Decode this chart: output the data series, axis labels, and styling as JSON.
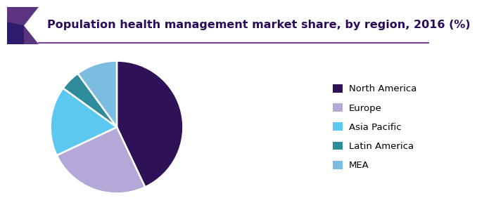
{
  "title": "Population health management market share, by region, 2016 (%)",
  "slices": [
    {
      "label": "North America",
      "value": 43,
      "color": "#2e1156"
    },
    {
      "label": "Europe",
      "value": 25,
      "color": "#b3a8d8"
    },
    {
      "label": "Asia Pacific",
      "value": 17,
      "color": "#5bc8f0"
    },
    {
      "label": "Latin America",
      "value": 5,
      "color": "#2e8b9a"
    },
    {
      "label": "MEA",
      "value": 10,
      "color": "#7bbde0"
    }
  ],
  "title_fontsize": 11.5,
  "legend_fontsize": 9.5,
  "background_color": "#ffffff",
  "header_bg_color": "#f5f5f5",
  "title_color": "#2b0a5a",
  "header_line_color": "#7b3fa0",
  "corner_color1": "#5c3480",
  "corner_color2": "#2e1b6e"
}
